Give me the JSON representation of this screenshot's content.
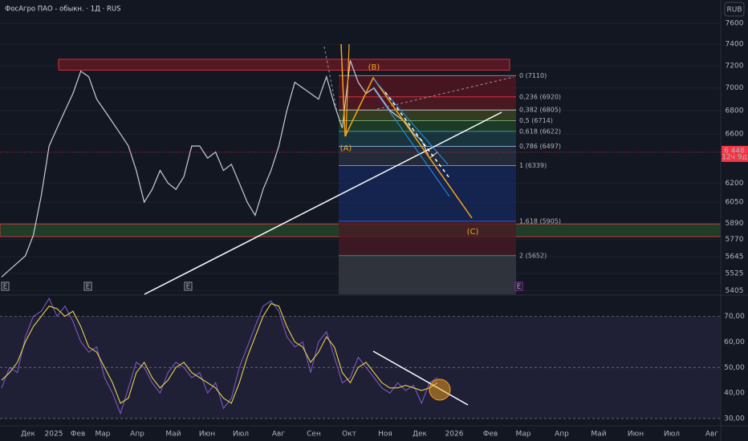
{
  "header": {
    "title": "ФосАгро ПАО - обыкн. · 1Д · RUS",
    "currency": "RUB",
    "event_marker": "E"
  },
  "chart_data": [
    {
      "type": "line",
      "color": "#c8cdd8",
      "log_scale": true,
      "values": [
        5500,
        5550,
        5600,
        5650,
        5800,
        6100,
        6500,
        6650,
        6800,
        6950,
        7150,
        7100,
        6900,
        6800,
        6700,
        6600,
        6500,
        6300,
        6050,
        6150,
        6300,
        6200,
        6150,
        6250,
        6500,
        6500,
        6400,
        6450,
        6300,
        6350,
        6200,
        6050,
        5950,
        6150,
        6300,
        6500,
        6800,
        7050,
        7000,
        6950,
        6900,
        7100,
        6850,
        6650,
        7250,
        7050,
        6950,
        7000,
        6900,
        6800,
        6750,
        6700,
        6600,
        6550,
        6400,
        6448
      ],
      "ylim": [
        5380,
        7830
      ],
      "yticks": [
        7600,
        7400,
        7200,
        7000,
        6800,
        6600,
        6200,
        6050,
        5890,
        5770,
        5645,
        5525,
        5405
      ],
      "last_price": {
        "value": 6448,
        "label": "6 448",
        "countdown": "12ч 9д",
        "color": "#f23645"
      },
      "zones": [
        {
          "range": [
            7160,
            7260
          ],
          "color": "#8b1a24"
        },
        {
          "range": [
            5790,
            5885
          ],
          "color": "#2b5e2b"
        }
      ],
      "fib_levels": [
        {
          "value": 7110,
          "label": "0 (7110)",
          "color": "#9598a1",
          "fill": "#5a1620"
        },
        {
          "value": 6920,
          "label": "0,236 (6920)",
          "color": "#f23645",
          "fill": "#5e1a22"
        },
        {
          "value": 6805,
          "label": "0,382 (6805)",
          "color": "#d1d4dc",
          "fill": "#3f4a22"
        },
        {
          "value": 6714,
          "label": "0,5 (6714)",
          "color": "#81c784",
          "fill": "#22472a"
        },
        {
          "value": 6622,
          "label": "0,618 (6622)",
          "color": "#4db6ac",
          "fill": "#1c3f45"
        },
        {
          "value": 6497,
          "label": "0,786 (6497)",
          "color": "#9ac8ff",
          "fill": "#2a3142"
        },
        {
          "value": 6339,
          "label": "1 (6339)",
          "color": "#9598a1",
          "fill": "#172a5e"
        },
        {
          "value": 5905,
          "label": "1,618 (5905)",
          "color": "#2962ff",
          "fill": "#4a1a24"
        },
        {
          "value": 5652,
          "label": "2 (5652)",
          "color": "#22ab94",
          "fill": "#3a3d45"
        }
      ],
      "wave_labels": [
        "(A)",
        "(B)",
        "(C)"
      ],
      "time_labels": [
        "Дек",
        "2025",
        "Фев",
        "Мар",
        "Апр",
        "Май",
        "Июн",
        "Июл",
        "Авг",
        "Сен",
        "Окт",
        "Ноя",
        "Дек",
        "2026",
        "Фев",
        "Мар",
        "Апр",
        "Май",
        "Июн",
        "Июл",
        "Авг"
      ]
    },
    {
      "type": "line",
      "series": [
        {
          "color": "#7e57c2",
          "values": [
            42,
            50,
            48,
            62,
            70,
            72,
            77,
            70,
            74,
            68,
            60,
            56,
            58,
            46,
            40,
            32,
            42,
            52,
            50,
            44,
            40,
            48,
            52,
            50,
            46,
            48,
            40,
            44,
            34,
            38,
            50,
            58,
            66,
            74,
            76,
            72,
            62,
            58,
            60,
            48,
            60,
            64,
            54,
            44,
            46,
            54,
            50,
            46,
            42,
            40,
            44,
            41,
            43,
            36,
            44,
            46
          ]
        },
        {
          "color": "#e8d44d",
          "values": [
            45,
            48,
            52,
            60,
            66,
            70,
            74,
            73,
            70,
            72,
            66,
            58,
            56,
            50,
            44,
            36,
            38,
            48,
            52,
            46,
            42,
            45,
            50,
            52,
            48,
            46,
            44,
            42,
            38,
            36,
            44,
            54,
            62,
            70,
            75,
            74,
            66,
            60,
            58,
            52,
            56,
            62,
            58,
            48,
            44,
            50,
            52,
            48,
            44,
            42,
            42,
            43,
            42,
            41,
            42,
            44
          ]
        }
      ],
      "ylim": [
        27.5,
        77.7
      ],
      "yticks": [
        {
          "value": 70,
          "label": "70,00"
        },
        {
          "value": 60,
          "label": "60,00"
        },
        {
          "value": 50,
          "label": "50,00"
        },
        {
          "value": 40,
          "label": "40,00"
        },
        {
          "value": 30,
          "label": "30,00"
        }
      ],
      "band": [
        30,
        70
      ],
      "band_color": "#7e57c2"
    }
  ]
}
